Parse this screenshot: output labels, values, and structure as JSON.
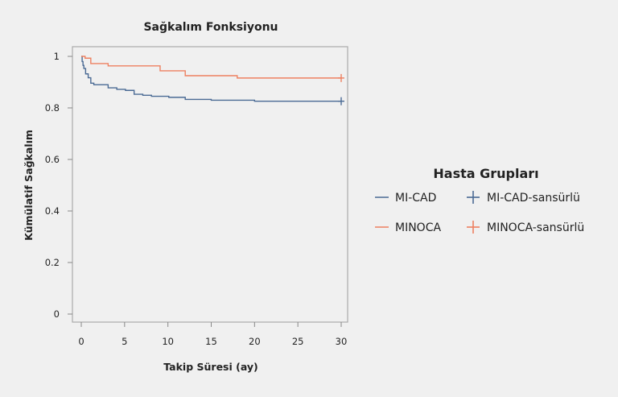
{
  "chart_data": {
    "type": "line",
    "subtype": "kaplan-meier step",
    "title": "Sağkalım Fonksiyonu",
    "xlabel": "Takip Süresi (ay)",
    "ylabel": "Kümülatif Sağkalım",
    "xlim": [
      0,
      30
    ],
    "ylim": [
      0,
      1
    ],
    "xticks": [
      "0",
      "5",
      "10",
      "15",
      "20",
      "25",
      "30"
    ],
    "yticks": [
      "0",
      "0.2",
      "0.4",
      "0.6",
      "0.8",
      "1"
    ],
    "xtick_values": [
      0,
      5,
      10,
      15,
      20,
      25,
      30
    ],
    "ytick_values": [
      0,
      0.2,
      0.4,
      0.6,
      0.8,
      1
    ],
    "grid": false,
    "legend": {
      "title": "Hasta Grupları",
      "placement": "right",
      "entries": [
        "MI-CAD",
        "MINOCA",
        "MI-CAD-sansürlü",
        "MINOCA-sansürlü"
      ]
    },
    "series": [
      {
        "name": "MI-CAD",
        "color": "#4a6a94",
        "steps": [
          [
            0,
            1
          ],
          [
            0.1,
            0.98
          ],
          [
            0.2,
            0.965
          ],
          [
            0.3,
            0.953
          ],
          [
            0.5,
            0.932
          ],
          [
            0.8,
            0.917
          ],
          [
            1.1,
            0.896
          ],
          [
            1.45,
            0.89
          ],
          [
            3.1,
            0.878
          ],
          [
            4.1,
            0.872
          ],
          [
            5.1,
            0.868
          ],
          [
            6.1,
            0.853
          ],
          [
            7.1,
            0.849
          ],
          [
            8.1,
            0.845
          ],
          [
            10.1,
            0.841
          ],
          [
            12,
            0.833
          ],
          [
            15,
            0.83
          ],
          [
            20,
            0.826
          ],
          [
            30,
            0.826
          ]
        ],
        "censored": [
          [
            30,
            0.826
          ]
        ]
      },
      {
        "name": "MINOCA",
        "color": "#ee8060",
        "steps": [
          [
            0,
            1
          ],
          [
            0.44,
            0.993
          ],
          [
            1.1,
            0.972
          ],
          [
            3.1,
            0.963
          ],
          [
            9.1,
            0.944
          ],
          [
            12,
            0.925
          ],
          [
            18,
            0.916
          ],
          [
            30,
            0.916
          ]
        ],
        "censored": [
          [
            30,
            0.916
          ]
        ]
      }
    ]
  }
}
